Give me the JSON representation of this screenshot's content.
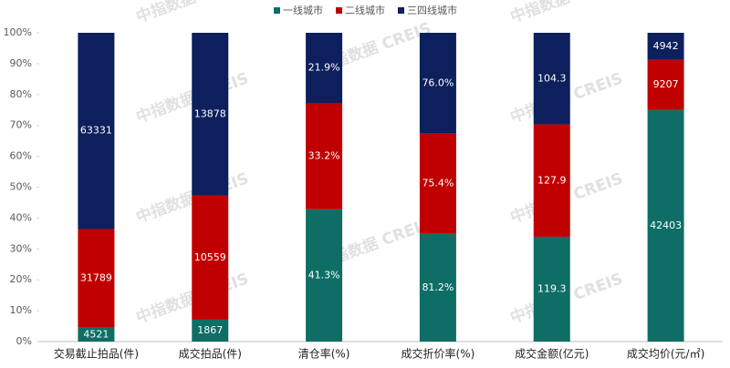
{
  "chart_data": {
    "type": "stacked_bar_100",
    "watermark": "中指数据 CREIS",
    "categories": [
      "交易截止拍品(件)",
      "成交拍品(件)",
      "清仓率(%)",
      "成交折价率(%)",
      "成交金额(亿元)",
      "成交均价(元/㎡)"
    ],
    "series": [
      {
        "name": "一线城市",
        "color": "#0e6e66",
        "values": [
          4521,
          1867,
          41.3,
          81.2,
          119.3,
          42403
        ],
        "value_labels": [
          "4521",
          "1867",
          "41.3%",
          "81.2%",
          "119.3",
          "42403"
        ]
      },
      {
        "name": "二线城市",
        "color": "#c00000",
        "values": [
          31789,
          10559,
          33.2,
          75.4,
          127.9,
          9207
        ],
        "value_labels": [
          "31789",
          "10559",
          "33.2%",
          "75.4%",
          "127.9",
          "9207"
        ]
      },
      {
        "name": "三四线城市",
        "color": "#0d1f5c",
        "values": [
          63331,
          13878,
          21.9,
          76.0,
          104.3,
          4942
        ],
        "value_labels": [
          "63331",
          "13878",
          "21.9%",
          "76.0%",
          "104.3",
          "4942"
        ]
      }
    ],
    "ylim": [
      0,
      100
    ],
    "yticks": [
      {
        "value": 0,
        "label": "0%"
      },
      {
        "value": 10,
        "label": "10%"
      },
      {
        "value": 20,
        "label": "20%"
      },
      {
        "value": 30,
        "label": "30%"
      },
      {
        "value": 40,
        "label": "40%"
      },
      {
        "value": 50,
        "label": "50%"
      },
      {
        "value": 60,
        "label": "60%"
      },
      {
        "value": 70,
        "label": "70%"
      },
      {
        "value": 80,
        "label": "80%"
      },
      {
        "value": 90,
        "label": "90%"
      },
      {
        "value": 100,
        "label": "100%"
      }
    ],
    "legend": "top"
  }
}
